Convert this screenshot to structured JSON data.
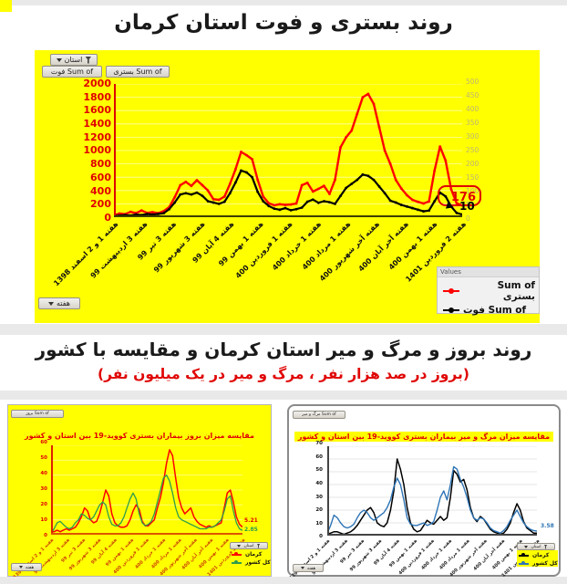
{
  "titles": {
    "section1": "روند بستری و فوت استان کرمان",
    "section2": "روند بروز و مرگ و میر استان کرمان و مقایسه با کشور",
    "section2_sub": "(بروز در صد هزار نفر ، مرگ و میر در یک میلیون نفر)"
  },
  "big_chart": {
    "filter_button": "استان",
    "value_button_deaths": "Sum of فوت",
    "value_button_hospitalized": "Sum of بستری",
    "week_button": "هفته",
    "legend_header": "Values",
    "legend": [
      {
        "label": "Sum of بستری",
        "color": "#ff0000"
      },
      {
        "label": "Sum of فوت",
        "color": "#000000"
      }
    ],
    "end_label_hospitalized": "176",
    "end_label_deaths": "10"
  },
  "left_chart": {
    "value_button": "Sum of بروز",
    "filter_button": "استان",
    "week_button": "هفته",
    "title": "مقایسه میزان بروز بیماران بستری کووید-19 بین استان و کشور",
    "legend": [
      {
        "label": "کرمان",
        "color": "#ff0000"
      },
      {
        "label": "کل کشور",
        "color": "#2e9b4e"
      }
    ],
    "end_label_kerman": "5.21",
    "end_label_country": "2.85"
  },
  "right_chart": {
    "value_button": "Sum of مرگ و میر",
    "filter_button": "استان",
    "week_button": "هفته",
    "title": "مقایسه میزان مرگ و میر بیماران بستری کووید-19 بین استان و کشور",
    "legend": [
      {
        "label": "کرمان",
        "color": "#000000"
      },
      {
        "label": "کل کشور",
        "color": "#2e75b6"
      }
    ],
    "end_label_country": "3.58"
  },
  "chart_data": [
    {
      "type": "line",
      "title": "روند بستری و فوت استان کرمان",
      "categories": [
        "هفته 1 و 2 اسفند 1398",
        "هفته 3 اردیبهشت 99",
        "هفته 3 تیر 99",
        "هفته 3 شهریور 99",
        "هفته 4 آبان 99",
        "هفته 1 بهمن 99",
        "هفته 1 فروردین 400",
        "هفته 1 خرداد 400",
        "هفته 1 مرداد 400",
        "هفته آخر شهریور 400",
        "هفته آخر آبان 400",
        "هفته 1 بهمن 400",
        "هفته 2 فروردین 1401"
      ],
      "xlabel": "هفته",
      "ylim_left": [
        0,
        2000
      ],
      "yticks_left": [
        2000,
        1800,
        1600,
        1400,
        1200,
        1000,
        800,
        600,
        400,
        200,
        0
      ],
      "ylim_right": [
        0,
        500
      ],
      "yticks_right": [
        500,
        450,
        400,
        350,
        300,
        250,
        200,
        150,
        100,
        50,
        0
      ],
      "grid": true,
      "legend_position": "bottom-right",
      "series": [
        {
          "name": "Sum of بستری",
          "axis": "left",
          "color": "#ff0000",
          "values": [
            30,
            55,
            45,
            80,
            60,
            100,
            65,
            75,
            60,
            90,
            150,
            300,
            480,
            530,
            470,
            555,
            480,
            400,
            270,
            260,
            310,
            500,
            720,
            980,
            930,
            870,
            560,
            310,
            210,
            180,
            195,
            185,
            190,
            205,
            480,
            515,
            385,
            425,
            470,
            350,
            560,
            1050,
            1200,
            1300,
            1550,
            1800,
            1850,
            1700,
            1350,
            1000,
            800,
            560,
            430,
            330,
            260,
            230,
            205,
            235,
            700,
            1060,
            850,
            420,
            210,
            176
          ]
        },
        {
          "name": "Sum of فوت",
          "axis": "right",
          "color": "#000000",
          "values": [
            5,
            6,
            8,
            6,
            10,
            8,
            12,
            10,
            12,
            15,
            30,
            55,
            85,
            90,
            85,
            92,
            80,
            60,
            55,
            50,
            58,
            90,
            130,
            175,
            168,
            150,
            95,
            60,
            42,
            32,
            28,
            34,
            26,
            30,
            36,
            58,
            66,
            54,
            60,
            56,
            50,
            80,
            110,
            125,
            140,
            160,
            155,
            140,
            115,
            90,
            62,
            55,
            46,
            40,
            34,
            28,
            22,
            25,
            60,
            92,
            78,
            40,
            16,
            10
          ]
        }
      ],
      "annotations": [
        {
          "text": "176",
          "series": "Sum of بستری",
          "position": "line-end"
        },
        {
          "text": "10",
          "series": "Sum of فوت",
          "position": "line-end"
        }
      ]
    },
    {
      "type": "line",
      "title": "مقایسه میزان بروز بیماران بستری کووید-19 بین استان و کشور",
      "categories": [
        "هفته 1 و 2 اسفند 1398",
        "هفته 3 اردیبهشت 99",
        "هفته 3 تیر 99",
        "هفته 3 شهریور 99",
        "هفته 4 آبان 99",
        "هفته 1 بهمن 99",
        "هفته 1 فروردین 400",
        "هفته 1 خرداد 400",
        "هفته 1 مرداد 400",
        "هفته آخر شهریور 400",
        "هفته آخر آبان 400",
        "هفته 1 بهمن 400",
        "هفته 2 فروردین 1401"
      ],
      "ylim": [
        0,
        60
      ],
      "yticks": [
        60,
        50,
        40,
        30,
        20,
        10,
        0
      ],
      "grid": true,
      "legend_position": "bottom-right",
      "series": [
        {
          "name": "کرمان",
          "color": "#ff0000",
          "values": [
            2,
            2,
            3,
            2,
            3,
            4,
            3,
            4,
            5,
            8,
            12,
            18,
            16,
            10,
            8,
            9,
            14,
            22,
            30,
            26,
            14,
            8,
            6,
            5,
            5,
            6,
            10,
            16,
            20,
            17,
            9,
            6,
            6,
            8,
            10,
            18,
            25,
            35,
            48,
            57,
            53,
            38,
            25,
            18,
            14,
            16,
            18,
            12,
            9,
            7,
            6,
            5,
            6,
            5,
            6,
            7,
            8,
            18,
            28,
            30,
            22,
            12,
            7,
            5.21
          ]
        },
        {
          "name": "کل کشور",
          "color": "#2e9b4e",
          "values": [
            1,
            4,
            8,
            9,
            7,
            5,
            4,
            5,
            8,
            10,
            14,
            13,
            11,
            10,
            12,
            16,
            20,
            22,
            20,
            12,
            7,
            6,
            6,
            8,
            12,
            18,
            24,
            28,
            24,
            14,
            8,
            6,
            7,
            9,
            14,
            22,
            30,
            38,
            40,
            36,
            28,
            18,
            12,
            10,
            9,
            8,
            7,
            6,
            5,
            4,
            4,
            4,
            5,
            5,
            6,
            8,
            10,
            16,
            24,
            26,
            16,
            8,
            4,
            2.85
          ]
        }
      ],
      "annotations": [
        {
          "text": "5.21",
          "series": "کرمان",
          "position": "line-end"
        },
        {
          "text": "2.85",
          "series": "کل کشور",
          "position": "line-end"
        }
      ]
    },
    {
      "type": "line",
      "title": "مقایسه میزان مرگ و میر بیماران بستری کووید-19 بین استان و کشور",
      "categories": [
        "هفته 1 و 2 اسفند 1398",
        "هفته 3 اردیبهشت 99",
        "هفته 3 تیر 99",
        "هفته 3 شهریور 99",
        "هفته 4 آبان 99",
        "هفته 1 بهمن 99",
        "هفته 1 فروردین 400",
        "هفته 1 خرداد 400",
        "هفته 1 مرداد 400",
        "هفته آخر شهریور 400",
        "هفته آخر آبان 400",
        "هفته 1 بهمن 400",
        "هفته 2 فروردین 1401"
      ],
      "ylim": [
        0,
        70
      ],
      "yticks": [
        70,
        60,
        50,
        40,
        30,
        20,
        10,
        0
      ],
      "grid": true,
      "legend_position": "bottom-right",
      "series": [
        {
          "name": "کرمان",
          "color": "#000000",
          "values": [
            1,
            2,
            3,
            3,
            2,
            1,
            2,
            3,
            5,
            8,
            12,
            16,
            20,
            22,
            18,
            10,
            8,
            7,
            10,
            20,
            35,
            60,
            52,
            40,
            22,
            10,
            5,
            3,
            4,
            8,
            12,
            10,
            9,
            12,
            15,
            12,
            14,
            30,
            51,
            48,
            42,
            44,
            36,
            22,
            14,
            11,
            15,
            13,
            9,
            5,
            3,
            2,
            1,
            2,
            5,
            10,
            18,
            25,
            20,
            11,
            6,
            4,
            2,
            2
          ]
        },
        {
          "name": "کل کشور",
          "color": "#2e75b6",
          "values": [
            2,
            8,
            16,
            14,
            10,
            7,
            6,
            7,
            9,
            14,
            18,
            20,
            18,
            14,
            12,
            14,
            16,
            18,
            22,
            28,
            38,
            45,
            40,
            28,
            14,
            9,
            8,
            8,
            9,
            10,
            8,
            9,
            11,
            20,
            30,
            35,
            28,
            40,
            54,
            52,
            44,
            38,
            30,
            20,
            14,
            12,
            14,
            13,
            10,
            6,
            4,
            3,
            2,
            4,
            7,
            12,
            16,
            20,
            15,
            10,
            7,
            5,
            4,
            3.58
          ]
        }
      ],
      "annotations": [
        {
          "text": "3.58",
          "series": "کل کشور",
          "position": "line-end"
        }
      ]
    }
  ]
}
